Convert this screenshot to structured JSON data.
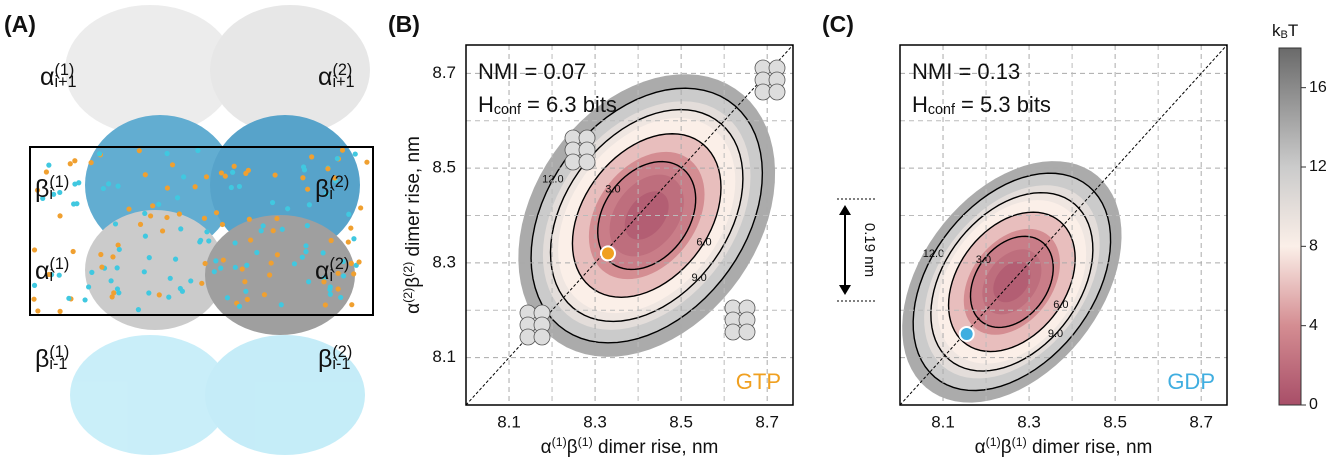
{
  "panel_labels": [
    "(A)",
    "(B)",
    "(C)"
  ],
  "panel_a": {
    "labels": [
      [
        {
          "text": "α"
        },
        {
          "sup": "(1)"
        },
        {
          "sub": "i+1"
        }
      ],
      [
        {
          "text": "α"
        },
        {
          "sup": "(2)"
        },
        {
          "sub": "i+1"
        }
      ],
      [
        {
          "text": "β"
        },
        {
          "sup": "(1)"
        },
        {
          "sub": "i"
        }
      ],
      [
        {
          "text": "β"
        },
        {
          "sup": "(2)"
        },
        {
          "sub": "i"
        }
      ],
      [
        {
          "text": "α"
        },
        {
          "sup": "(1)"
        },
        {
          "sub": "i"
        }
      ],
      [
        {
          "text": "α"
        },
        {
          "sup": "(2)"
        },
        {
          "sub": "i"
        }
      ],
      [
        {
          "text": "β"
        },
        {
          "sup": "(1)"
        },
        {
          "sub": "i-1"
        }
      ],
      [
        {
          "text": "β"
        },
        {
          "sup": "(2)"
        },
        {
          "sub": "i-1"
        }
      ]
    ]
  },
  "chart_data": [
    {
      "type": "contour",
      "xlabel": [
        {
          "text": "α"
        },
        {
          "sup": "(1)"
        },
        {
          "text": "β"
        },
        {
          "sup": "(1)"
        },
        {
          "text": " dimer rise, nm"
        }
      ],
      "ylabel": [
        {
          "text": "α"
        },
        {
          "sup": "(2)"
        },
        {
          "text": "β"
        },
        {
          "sup": "(2)"
        },
        {
          "text": " dimer rise, nm"
        }
      ],
      "xlim": [
        8.0,
        8.76
      ],
      "ylim": [
        8.0,
        8.76
      ],
      "xticks": [
        8.1,
        8.3,
        8.5,
        8.7
      ],
      "yticks": [
        8.1,
        8.3,
        8.5,
        8.7
      ],
      "minor_grid": [
        8.2,
        8.4,
        8.6
      ],
      "grid": true,
      "annotations": [
        [
          {
            "text": "NMI = 0.07"
          }
        ],
        [
          {
            "text": "H"
          },
          {
            "sub": "conf"
          },
          {
            "text": " = 6.3 bits"
          }
        ]
      ],
      "center": [
        8.42,
        8.4
      ],
      "contours": [
        {
          "level": 14,
          "a": 0.34,
          "b": 0.25
        },
        {
          "level": 12,
          "a": 0.31,
          "b": 0.22,
          "label": "12.0"
        },
        {
          "level": 10,
          "a": 0.28,
          "b": 0.195
        },
        {
          "level": 9,
          "a": 0.26,
          "b": 0.18,
          "label": "9.0"
        },
        {
          "level": 8,
          "a": 0.24,
          "b": 0.165
        },
        {
          "level": 6,
          "a": 0.2,
          "b": 0.14,
          "label": "6.0"
        },
        {
          "level": 4,
          "a": 0.155,
          "b": 0.11
        },
        {
          "level": 3,
          "a": 0.13,
          "b": 0.095,
          "label": "3.0"
        },
        {
          "level": 2,
          "a": 0.1,
          "b": 0.07
        },
        {
          "level": 1,
          "a": 0.06,
          "b": 0.04
        }
      ],
      "point": {
        "name": "GTP",
        "x": 8.33,
        "y": 8.32,
        "color": "#f0a020"
      }
    },
    {
      "type": "contour",
      "xlabel": [
        {
          "text": "α"
        },
        {
          "sup": "(1)"
        },
        {
          "text": "β"
        },
        {
          "sup": "(1)"
        },
        {
          "text": " dimer rise, nm"
        }
      ],
      "xlim": [
        8.0,
        8.76
      ],
      "ylim": [
        8.0,
        8.76
      ],
      "xticks": [
        8.1,
        8.3,
        8.5,
        8.7
      ],
      "yticks": [
        8.1,
        8.3,
        8.5,
        8.7
      ],
      "minor_grid": [
        8.2,
        8.4,
        8.6
      ],
      "grid": true,
      "annotations": [
        [
          {
            "text": "NMI = 0.13"
          }
        ],
        [
          {
            "text": "H"
          },
          {
            "sub": "conf"
          },
          {
            "text": " = 5.3 bits"
          }
        ]
      ],
      "center": [
        8.26,
        8.26
      ],
      "contours": [
        {
          "level": 14,
          "a": 0.3,
          "b": 0.2
        },
        {
          "level": 12,
          "a": 0.27,
          "b": 0.18,
          "label": "12.0"
        },
        {
          "level": 10,
          "a": 0.24,
          "b": 0.16
        },
        {
          "level": 9,
          "a": 0.22,
          "b": 0.15,
          "label": "9.0"
        },
        {
          "level": 8,
          "a": 0.2,
          "b": 0.14
        },
        {
          "level": 6,
          "a": 0.17,
          "b": 0.12,
          "label": "6.0"
        },
        {
          "level": 4,
          "a": 0.13,
          "b": 0.09
        },
        {
          "level": 3,
          "a": 0.11,
          "b": 0.08,
          "label": "3.0"
        },
        {
          "level": 2,
          "a": 0.08,
          "b": 0.055
        },
        {
          "level": 1,
          "a": 0.05,
          "b": 0.035
        }
      ],
      "point": {
        "name": "GDP",
        "x": 8.155,
        "y": 8.15,
        "color": "#40aee0"
      }
    }
  ],
  "colorbar": {
    "title": [
      {
        "text": "k"
      },
      {
        "sub": "B"
      },
      {
        "text": "T"
      }
    ],
    "lim": [
      0,
      18
    ],
    "ticks": [
      0,
      4,
      8,
      12,
      16
    ],
    "colorscale": [
      [
        0,
        "#a84e68"
      ],
      [
        4,
        "#d48d92"
      ],
      [
        8,
        "#fbefe8"
      ],
      [
        12,
        "#cbcbcb"
      ],
      [
        18,
        "#6a6a6a"
      ]
    ]
  },
  "scale_bar": {
    "value": 0.19,
    "label": "0.19 nm"
  }
}
